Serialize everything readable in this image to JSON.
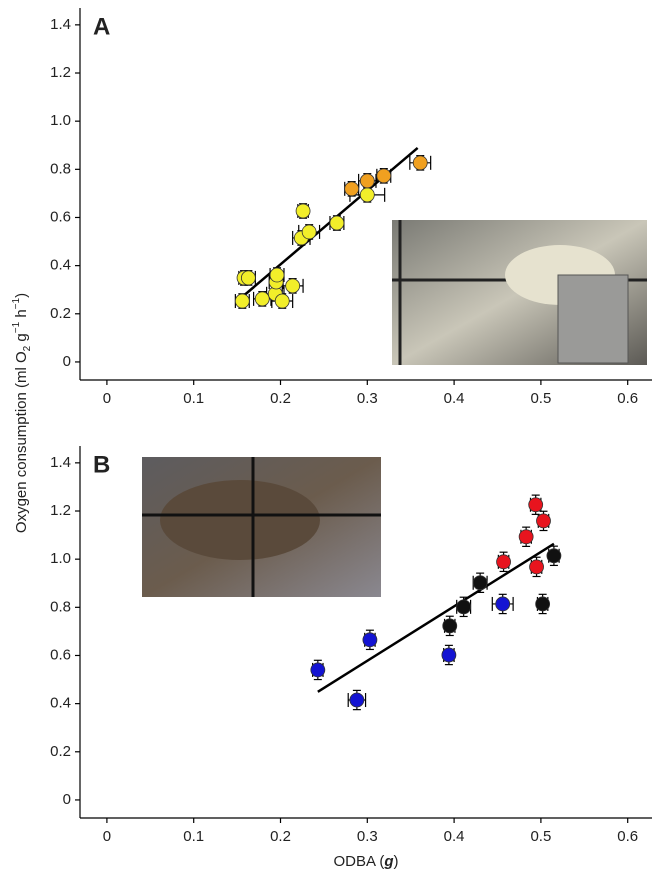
{
  "chart_data": [
    {
      "type": "scatter",
      "panel": "A",
      "ylabel": [
        "Oxygen consumption (ml O",
        "2",
        " g",
        "−1",
        " h",
        "−1",
        ")"
      ],
      "xlim": [
        -0.031,
        0.628
      ],
      "ylim": [
        -0.075,
        1.47
      ],
      "xticks": [
        0,
        0.1,
        0.2,
        0.3,
        0.4,
        0.5,
        0.6
      ],
      "yticks": [
        0,
        {
          "value": 0.2,
          "label": "0.2"
        },
        {
          "value": 0.4,
          "label": "0.4"
        },
        {
          "value": 0.6,
          "label": "0.6"
        },
        {
          "value": 0.8,
          "label": "0.8"
        },
        {
          "value": 1.0,
          "label": "1.0"
        },
        {
          "value": 1.2,
          "label": "1.2"
        },
        {
          "value": 1.4,
          "label": "1.4"
        }
      ],
      "series": [
        {
          "color": "#f2ee2a",
          "x": [
            0.156,
            0.158,
            0.163,
            0.179,
            0.194,
            0.195,
            0.196,
            0.202,
            0.214,
            0.224,
            0.226,
            0.233,
            0.265,
            0.3
          ],
          "values": [
            0.253,
            0.349,
            0.349,
            0.262,
            0.283,
            0.332,
            0.361,
            0.253,
            0.316,
            0.515,
            0.627,
            0.54,
            0.577,
            0.694
          ],
          "xerr": [
            0.008,
            0.006,
            0.008,
            0.01,
            0.01,
            0.008,
            0.008,
            0.012,
            0.012,
            0.01,
            0.006,
            0.012,
            0.008,
            0.02
          ],
          "yerr": [
            0.03,
            0.03,
            0.03,
            0.03,
            0.03,
            0.03,
            0.03,
            0.03,
            0.03,
            0.03,
            0.03,
            0.03,
            0.03,
            0.03
          ]
        },
        {
          "color": "#f0a020",
          "x": [
            0.282,
            0.3,
            0.319,
            0.361
          ],
          "values": [
            0.719,
            0.752,
            0.773,
            0.827
          ],
          "xerr": [
            0.008,
            0.01,
            0.008,
            0.012
          ],
          "yerr": [
            0.03,
            0.03,
            0.03,
            0.03
          ]
        }
      ],
      "fit": {
        "x": [
          0.149,
          0.358
        ],
        "values": [
          0.249,
          0.889
        ]
      }
    },
    {
      "type": "scatter",
      "panel": "B",
      "xlabel": [
        "ODBA (",
        "g",
        ")"
      ],
      "xlim": [
        -0.031,
        0.628
      ],
      "ylim": [
        -0.075,
        1.47
      ],
      "xticks": [
        0,
        0.1,
        0.2,
        0.3,
        0.4,
        0.5,
        0.6
      ],
      "yticks": [
        0,
        {
          "value": 0.2,
          "label": "0.2"
        },
        {
          "value": 0.4,
          "label": "0.4"
        },
        {
          "value": 0.6,
          "label": "0.6"
        },
        {
          "value": 0.8,
          "label": "0.8"
        },
        {
          "value": 1.0,
          "label": "1.0"
        },
        {
          "value": 1.2,
          "label": "1.2"
        },
        {
          "value": 1.4,
          "label": "1.4"
        }
      ],
      "series": [
        {
          "color": "#1414d2",
          "x": [
            0.243,
            0.288,
            0.303,
            0.394,
            0.456
          ],
          "values": [
            0.54,
            0.415,
            0.665,
            0.602,
            0.814
          ],
          "xerr": [
            0.006,
            0.01,
            0.006,
            0.006,
            0.012
          ],
          "yerr": [
            0.04,
            0.04,
            0.04,
            0.04,
            0.04
          ]
        },
        {
          "color": "#111111",
          "x": [
            0.395,
            0.411,
            0.43,
            0.502,
            0.515
          ],
          "values": [
            0.723,
            0.802,
            0.902,
            0.814,
            1.014
          ],
          "xerr": [
            0.006,
            0.008,
            0.008,
            0.006,
            0.006
          ],
          "yerr": [
            0.04,
            0.04,
            0.04,
            0.04,
            0.04
          ]
        },
        {
          "color": "#e8141e",
          "x": [
            0.457,
            0.483,
            0.494,
            0.503,
            0.495
          ],
          "values": [
            0.989,
            1.093,
            1.226,
            1.159,
            0.968
          ],
          "xerr": [
            0.006,
            0.006,
            0.006,
            0.006,
            0.006
          ],
          "yerr": [
            0.04,
            0.04,
            0.04,
            0.04,
            0.04
          ]
        }
      ],
      "fit": {
        "x": [
          0.243,
          0.515
        ],
        "values": [
          0.449,
          1.064
        ]
      }
    }
  ]
}
